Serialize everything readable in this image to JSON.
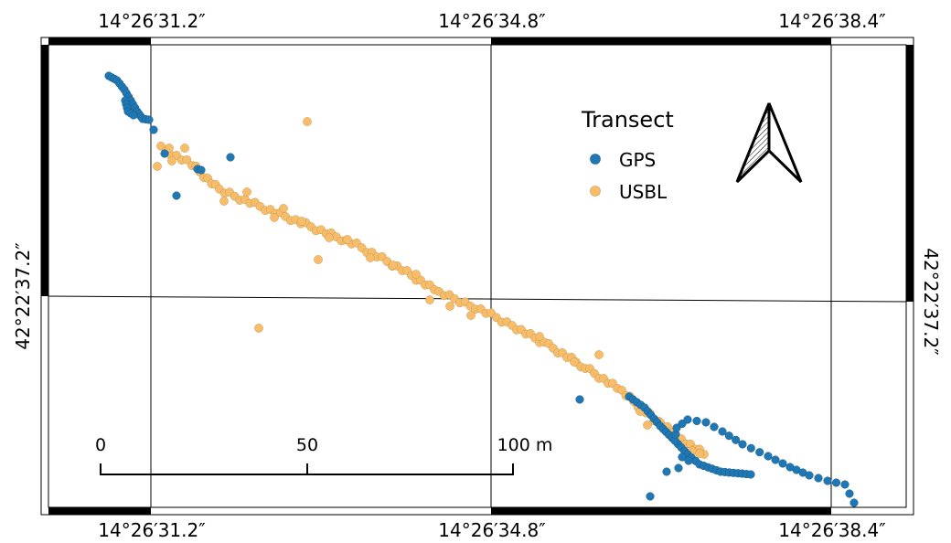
{
  "map": {
    "top_labels": [
      "14°26′31.2″",
      "14°26′34.8″",
      "14°26′38.4″"
    ],
    "bottom_labels": [
      "14°26′31.2″",
      "14°26′34.8″",
      "14°26′38.4″"
    ],
    "left_label": "42°22′37.2″",
    "right_label": "42°22′37.2″"
  },
  "legend": {
    "title": "Transect",
    "items": [
      {
        "label": "GPS",
        "color": "#1f77b4"
      },
      {
        "label": "USBL",
        "color": "#f7bd6a"
      }
    ]
  },
  "scale_bar": {
    "labels": [
      "0",
      "50",
      "100 m"
    ]
  },
  "north_arrow": {
    "icon": "north-arrow-icon"
  }
}
